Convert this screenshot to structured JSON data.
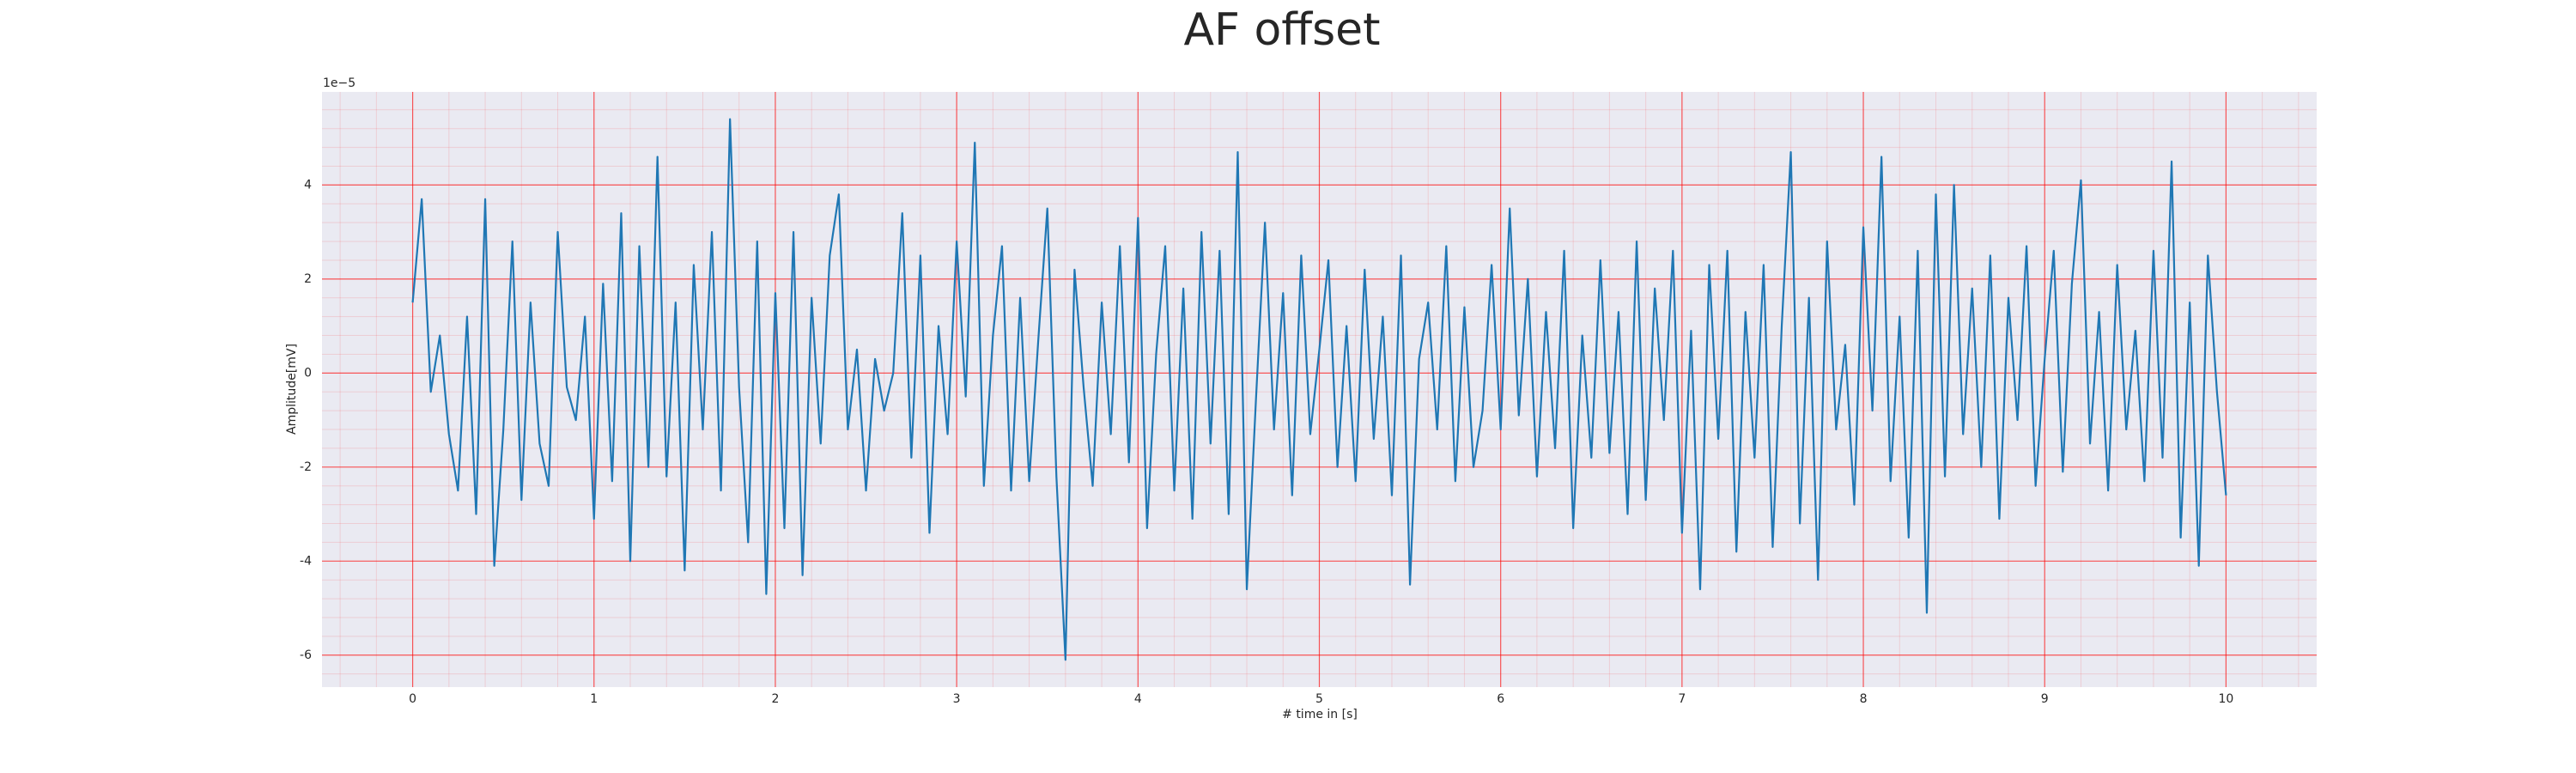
{
  "chart_data": {
    "type": "line",
    "title": "AF offset",
    "x_label": "# time in [s]",
    "y_label": "Amplitude[mV]",
    "y_offset_label": "1e−5",
    "color": "#1f77b4",
    "grid": true,
    "grid_color": "#ff0000",
    "minor_grid": true,
    "background": "#eaeaf2",
    "xlim": [
      -0.5,
      10.5
    ],
    "xticks": [
      0,
      1,
      2,
      3,
      4,
      5,
      6,
      7,
      8,
      9,
      10
    ],
    "ylim": [
      -6.68,
      5.98
    ],
    "yticks": [
      -6,
      -4,
      -2,
      0,
      2,
      4
    ],
    "x": [
      0,
      0.05,
      0.1,
      0.15,
      0.2,
      0.25,
      0.3,
      0.35,
      0.4,
      0.45,
      0.5,
      0.55,
      0.6,
      0.65,
      0.7,
      0.75,
      0.8,
      0.85,
      0.9,
      0.95,
      1,
      1.05,
      1.1,
      1.15,
      1.2,
      1.25,
      1.3,
      1.35,
      1.4,
      1.45,
      1.5,
      1.55,
      1.6,
      1.65,
      1.7,
      1.75,
      1.8,
      1.85,
      1.9,
      1.95,
      2,
      2.05,
      2.1,
      2.15,
      2.2,
      2.25,
      2.3,
      2.35,
      2.4,
      2.45,
      2.5,
      2.55,
      2.6,
      2.65,
      2.7,
      2.75,
      2.8,
      2.85,
      2.9,
      2.95,
      3,
      3.05,
      3.1,
      3.15,
      3.2,
      3.25,
      3.3,
      3.35,
      3.4,
      3.45,
      3.5,
      3.55,
      3.6,
      3.65,
      3.7,
      3.75,
      3.8,
      3.85,
      3.9,
      3.95,
      4,
      4.05,
      4.1,
      4.15,
      4.2,
      4.25,
      4.3,
      4.35,
      4.4,
      4.45,
      4.5,
      4.55,
      4.6,
      4.65,
      4.7,
      4.75,
      4.8,
      4.85,
      4.9,
      4.95,
      5,
      5.05,
      5.1,
      5.15,
      5.2,
      5.25,
      5.3,
      5.35,
      5.4,
      5.45,
      5.5,
      5.55,
      5.6,
      5.65,
      5.7,
      5.75,
      5.8,
      5.85,
      5.9,
      5.95,
      6,
      6.05,
      6.1,
      6.15,
      6.2,
      6.25,
      6.3,
      6.35,
      6.4,
      6.45,
      6.5,
      6.55,
      6.6,
      6.65,
      6.7,
      6.75,
      6.8,
      6.85,
      6.9,
      6.95,
      7,
      7.05,
      7.1,
      7.15,
      7.2,
      7.25,
      7.3,
      7.35,
      7.4,
      7.45,
      7.5,
      7.55,
      7.6,
      7.65,
      7.7,
      7.75,
      7.8,
      7.85,
      7.9,
      7.95,
      8,
      8.05,
      8.1,
      8.15,
      8.2,
      8.25,
      8.3,
      8.35,
      8.4,
      8.45,
      8.5,
      8.55,
      8.6,
      8.65,
      8.7,
      8.75,
      8.8,
      8.85,
      8.9,
      8.95,
      9,
      9.05,
      9.1,
      9.15,
      9.2,
      9.25,
      9.3,
      9.35,
      9.4,
      9.45,
      9.5,
      9.55,
      9.6,
      9.65,
      9.7,
      9.75,
      9.8,
      9.85,
      9.9,
      9.95,
      10
    ],
    "values": [
      1.5,
      3.7,
      -0.4,
      0.8,
      -1.3,
      -2.5,
      1.2,
      -3.0,
      3.7,
      -4.1,
      -1.2,
      2.8,
      -2.7,
      1.5,
      -1.5,
      -2.4,
      3.0,
      -0.3,
      -1.0,
      1.2,
      -3.1,
      1.9,
      -2.3,
      3.4,
      -4.0,
      2.7,
      -2.0,
      4.6,
      -2.2,
      1.5,
      -4.2,
      2.3,
      -1.2,
      3.0,
      -2.5,
      5.4,
      -0.3,
      -3.6,
      2.8,
      -4.7,
      1.7,
      -3.3,
      3.0,
      -4.3,
      1.6,
      -1.5,
      2.5,
      3.8,
      -1.2,
      0.5,
      -2.5,
      0.3,
      -0.8,
      0.0,
      3.4,
      -1.8,
      2.5,
      -3.4,
      1.0,
      -1.3,
      2.8,
      -0.5,
      4.9,
      -2.4,
      0.8,
      2.7,
      -2.5,
      1.6,
      -2.3,
      0.7,
      3.5,
      -2.2,
      -6.1,
      2.2,
      -0.3,
      -2.4,
      1.5,
      -1.3,
      2.7,
      -1.9,
      3.3,
      -3.3,
      0.4,
      2.7,
      -2.5,
      1.8,
      -3.1,
      3.0,
      -1.5,
      2.6,
      -3.0,
      4.7,
      -4.6,
      -0.6,
      3.2,
      -1.2,
      1.7,
      -2.6,
      2.5,
      -1.3,
      0.5,
      2.4,
      -2.0,
      1.0,
      -2.3,
      2.2,
      -1.4,
      1.2,
      -2.6,
      2.5,
      -4.5,
      0.3,
      1.5,
      -1.2,
      2.7,
      -2.3,
      1.4,
      -2.0,
      -0.8,
      2.3,
      -1.2,
      3.5,
      -0.9,
      2.0,
      -2.2,
      1.3,
      -1.6,
      2.6,
      -3.3,
      0.8,
      -1.8,
      2.4,
      -1.7,
      1.3,
      -3.0,
      2.8,
      -2.7,
      1.8,
      -1.0,
      2.6,
      -3.4,
      0.9,
      -4.6,
      2.3,
      -1.4,
      2.6,
      -3.8,
      1.3,
      -1.8,
      2.3,
      -3.7,
      1.0,
      4.7,
      -3.2,
      1.6,
      -4.4,
      2.8,
      -1.2,
      0.6,
      -2.8,
      3.1,
      -0.8,
      4.6,
      -2.3,
      1.2,
      -3.5,
      2.6,
      -5.1,
      3.8,
      -2.2,
      4.0,
      -1.3,
      1.8,
      -2.0,
      2.5,
      -3.1,
      1.6,
      -1.0,
      2.7,
      -2.4,
      0.3,
      2.6,
      -2.1,
      1.9,
      4.1,
      -1.5,
      1.3,
      -2.5,
      2.3,
      -1.2,
      0.9,
      -2.3,
      2.6,
      -1.8,
      4.5,
      -3.5,
      1.5,
      -4.1,
      2.5,
      -0.4,
      -2.6
    ]
  }
}
